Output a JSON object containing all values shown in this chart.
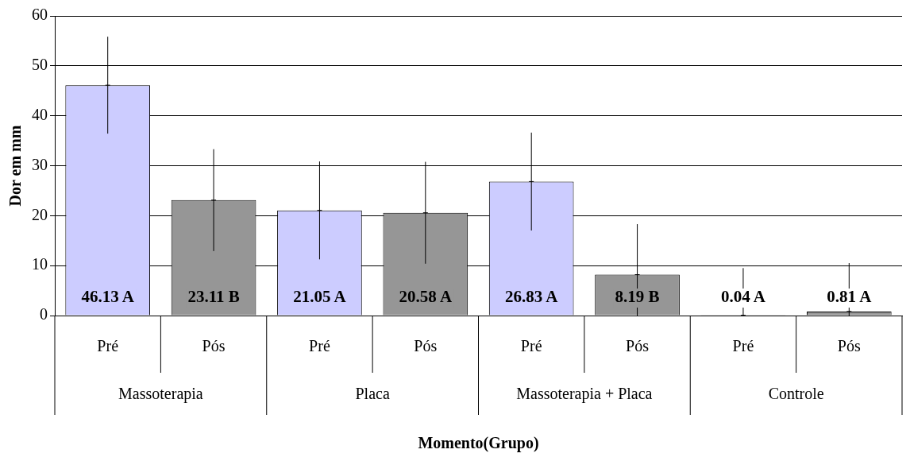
{
  "chart_data": {
    "type": "bar",
    "xlabel": "Momento(Grupo)",
    "ylabel": "Dor em mm",
    "categories": [
      "Pré",
      "Pós",
      "Pré",
      "Pós",
      "Pré",
      "Pós",
      "Pré",
      "Pós"
    ],
    "values": [
      46.13,
      23.11,
      21.05,
      20.58,
      26.83,
      8.19,
      0.04,
      0.81
    ],
    "colors": [
      "#ccccff",
      "#969696",
      "#ccccff",
      "#969696",
      "#ccccff",
      "#969696",
      "#ccccff",
      "#969696"
    ],
    "value_labels": [
      "46.13 A",
      "23.11 B",
      "21.05 A",
      "20.58 A",
      "26.83 A",
      "8.19 B",
      "0.04 A",
      "0.81 A"
    ],
    "errors": [
      9.7,
      10.2,
      9.8,
      10.2,
      9.8,
      [
        0,
        18.3
      ],
      [
        0,
        9.5
      ],
      [
        0,
        10.5
      ]
    ],
    "annotations": [
      "Massoterapia",
      "Placa",
      "Massoterapia + Placa",
      "Controle"
    ],
    "ylim": [
      0,
      60
    ],
    "yticks": [
      0,
      10,
      20,
      30,
      40,
      50,
      60
    ],
    "grid": "y",
    "legend": false
  }
}
